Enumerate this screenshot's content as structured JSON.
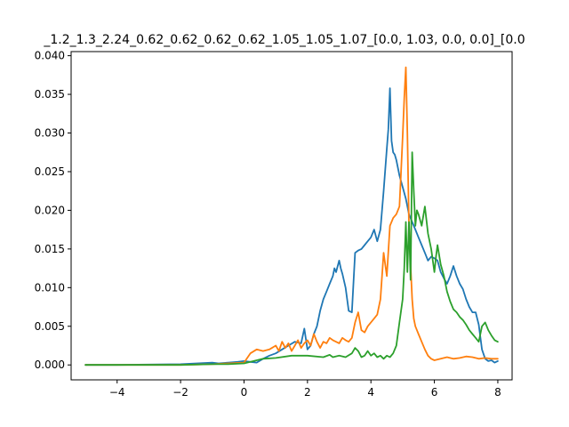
{
  "chart_data": {
    "type": "line",
    "title": "_1.2_1.3_2.24_0.62_0.62_0.62_0.62_1.05_1.05_1.07_[0.0, 1.03, 0.0, 0.0]_[0.0",
    "xlabel": "",
    "ylabel": "",
    "xlim": [
      -5.45,
      8.45
    ],
    "ylim": [
      -0.00193,
      0.04053
    ],
    "xticks": [
      -4,
      -2,
      0,
      2,
      4,
      6,
      8
    ],
    "xtick_labels": [
      "−4",
      "−2",
      "0",
      "2",
      "4",
      "6",
      "8"
    ],
    "yticks": [
      0.0,
      0.005,
      0.01,
      0.015,
      0.02,
      0.025,
      0.03,
      0.035,
      0.04
    ],
    "ytick_labels": [
      "0.000",
      "0.005",
      "0.010",
      "0.015",
      "0.020",
      "0.025",
      "0.030",
      "0.035",
      "0.040"
    ],
    "grid": false,
    "series": [
      {
        "color": "#1f77b4",
        "x": [
          -5.0,
          -4.0,
          -3.0,
          -2.0,
          -1.5,
          -1.0,
          -0.8,
          -0.5,
          -0.2,
          0.0,
          0.2,
          0.4,
          0.6,
          0.8,
          1.0,
          1.2,
          1.4,
          1.6,
          1.8,
          1.9,
          2.0,
          2.1,
          2.2,
          2.3,
          2.4,
          2.5,
          2.6,
          2.7,
          2.8,
          2.85,
          2.9,
          3.0,
          3.05,
          3.1,
          3.2,
          3.3,
          3.4,
          3.5,
          3.6,
          3.7,
          3.8,
          3.9,
          4.0,
          4.1,
          4.2,
          4.3,
          4.4,
          4.5,
          4.55,
          4.6,
          4.65,
          4.7,
          4.75,
          4.8,
          4.9,
          5.0,
          5.1,
          5.2,
          5.3,
          5.4,
          5.5,
          5.6,
          5.7,
          5.8,
          5.9,
          6.0,
          6.1,
          6.2,
          6.3,
          6.4,
          6.5,
          6.6,
          6.7,
          6.8,
          6.9,
          7.0,
          7.1,
          7.2,
          7.3,
          7.4,
          7.5,
          7.6,
          7.7,
          7.8,
          7.9,
          8.0
        ],
        "y": [
          0.0,
          0.0,
          5e-05,
          0.0001,
          0.0002,
          0.0003,
          0.0002,
          0.0003,
          0.0004,
          0.0005,
          0.0004,
          0.0003,
          0.0008,
          0.0012,
          0.0015,
          0.002,
          0.0025,
          0.003,
          0.0028,
          0.0047,
          0.002,
          0.0025,
          0.004,
          0.005,
          0.007,
          0.0085,
          0.0095,
          0.0105,
          0.0115,
          0.0125,
          0.012,
          0.0135,
          0.0125,
          0.0118,
          0.01,
          0.007,
          0.0068,
          0.0145,
          0.0148,
          0.015,
          0.0155,
          0.016,
          0.0165,
          0.0175,
          0.016,
          0.0175,
          0.0225,
          0.028,
          0.0305,
          0.0358,
          0.029,
          0.0275,
          0.0272,
          0.0265,
          0.0245,
          0.023,
          0.0215,
          0.0195,
          0.0185,
          0.0175,
          0.0165,
          0.0155,
          0.0145,
          0.0135,
          0.014,
          0.0138,
          0.0135,
          0.012,
          0.0112,
          0.0105,
          0.0115,
          0.0128,
          0.0115,
          0.0105,
          0.0098,
          0.0085,
          0.0075,
          0.0068,
          0.0068,
          0.0052,
          0.002,
          0.0008,
          0.0005,
          0.0006,
          0.0003,
          0.0005
        ]
      },
      {
        "color": "#ff7f0e",
        "x": [
          -5.0,
          -4.0,
          -3.0,
          -2.0,
          -1.0,
          -0.5,
          0.0,
          0.2,
          0.4,
          0.6,
          0.8,
          1.0,
          1.1,
          1.2,
          1.3,
          1.4,
          1.5,
          1.6,
          1.7,
          1.8,
          1.9,
          2.0,
          2.1,
          2.2,
          2.3,
          2.4,
          2.5,
          2.6,
          2.7,
          2.8,
          2.9,
          3.0,
          3.1,
          3.2,
          3.3,
          3.4,
          3.5,
          3.6,
          3.7,
          3.8,
          3.9,
          4.0,
          4.1,
          4.2,
          4.3,
          4.4,
          4.5,
          4.6,
          4.7,
          4.8,
          4.9,
          5.0,
          5.05,
          5.1,
          5.15,
          5.2,
          5.25,
          5.3,
          5.35,
          5.4,
          5.5,
          5.6,
          5.7,
          5.8,
          5.9,
          6.0,
          6.2,
          6.4,
          6.6,
          6.8,
          7.0,
          7.2,
          7.4,
          7.6,
          7.8,
          8.0
        ],
        "y": [
          0.0,
          0.0,
          0.0,
          0.0,
          0.0001,
          0.0002,
          0.0003,
          0.0015,
          0.002,
          0.0018,
          0.002,
          0.0025,
          0.0018,
          0.003,
          0.0022,
          0.0028,
          0.0018,
          0.0025,
          0.0032,
          0.0022,
          0.0028,
          0.0032,
          0.0025,
          0.004,
          0.003,
          0.0022,
          0.003,
          0.0028,
          0.0035,
          0.0032,
          0.003,
          0.0028,
          0.0035,
          0.0032,
          0.003,
          0.0035,
          0.0055,
          0.0068,
          0.0045,
          0.0042,
          0.005,
          0.0055,
          0.006,
          0.0065,
          0.0085,
          0.0145,
          0.0115,
          0.018,
          0.019,
          0.0195,
          0.0205,
          0.0295,
          0.0345,
          0.0385,
          0.03,
          0.018,
          0.013,
          0.0085,
          0.006,
          0.005,
          0.004,
          0.003,
          0.002,
          0.0012,
          0.0008,
          0.0006,
          0.0008,
          0.001,
          0.0008,
          0.0009,
          0.0011,
          0.001,
          0.0008,
          0.0009,
          0.0008,
          0.0008
        ]
      },
      {
        "color": "#2ca02c",
        "x": [
          -5.0,
          -4.0,
          -3.0,
          -2.0,
          -1.0,
          -0.5,
          0.0,
          0.3,
          0.6,
          1.0,
          1.5,
          2.0,
          2.5,
          2.7,
          2.8,
          3.0,
          3.2,
          3.4,
          3.5,
          3.6,
          3.7,
          3.8,
          3.9,
          4.0,
          4.1,
          4.2,
          4.3,
          4.4,
          4.5,
          4.6,
          4.7,
          4.8,
          4.9,
          5.0,
          5.05,
          5.1,
          5.15,
          5.2,
          5.25,
          5.3,
          5.35,
          5.4,
          5.45,
          5.5,
          5.6,
          5.7,
          5.8,
          5.9,
          6.0,
          6.05,
          6.1,
          6.2,
          6.3,
          6.4,
          6.5,
          6.6,
          6.7,
          6.8,
          6.9,
          7.0,
          7.1,
          7.2,
          7.3,
          7.4,
          7.5,
          7.6,
          7.7,
          7.8,
          7.9,
          8.0
        ],
        "y": [
          0.0,
          0.0,
          0.0,
          0.0,
          0.0001,
          0.0001,
          0.0002,
          0.0005,
          0.0008,
          0.0009,
          0.0012,
          0.0012,
          0.001,
          0.0013,
          0.001,
          0.0012,
          0.001,
          0.0015,
          0.0022,
          0.0018,
          0.001,
          0.0012,
          0.0018,
          0.0012,
          0.0015,
          0.001,
          0.0012,
          0.0008,
          0.0012,
          0.001,
          0.0015,
          0.0025,
          0.0055,
          0.0085,
          0.0125,
          0.0185,
          0.012,
          0.0185,
          0.011,
          0.0275,
          0.0225,
          0.018,
          0.02,
          0.0195,
          0.018,
          0.0205,
          0.017,
          0.015,
          0.012,
          0.014,
          0.0155,
          0.013,
          0.0115,
          0.0095,
          0.0082,
          0.0072,
          0.0068,
          0.0062,
          0.0058,
          0.0052,
          0.0045,
          0.004,
          0.0035,
          0.003,
          0.005,
          0.0055,
          0.0045,
          0.0038,
          0.0032,
          0.003
        ]
      }
    ]
  }
}
